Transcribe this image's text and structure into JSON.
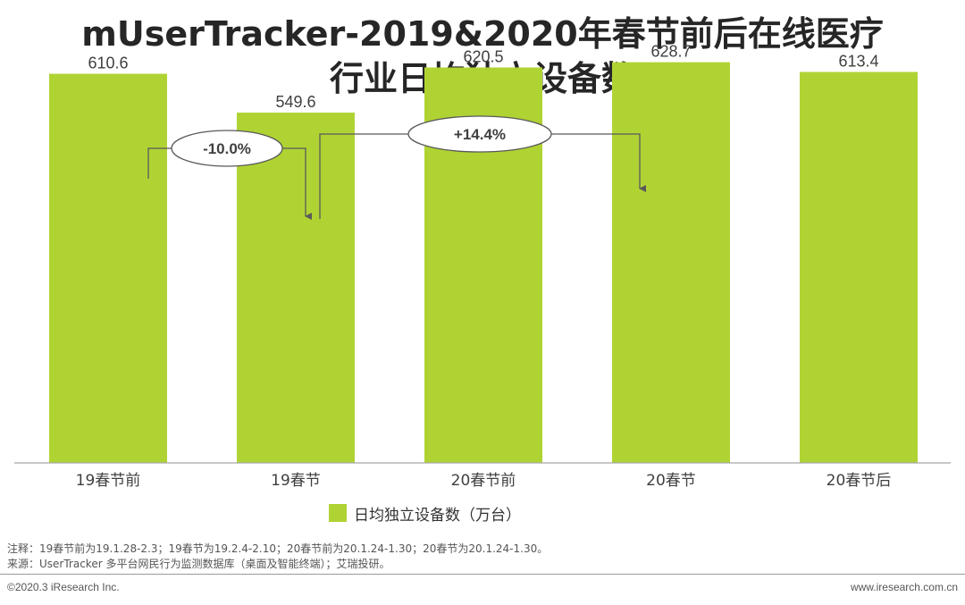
{
  "title_line1": "mUserTracker-2019&2020年春节前后在线医疗",
  "title_line2": "行业日均独立设备数",
  "chart_data": {
    "type": "bar",
    "categories": [
      "19春节前",
      "19春节",
      "20春节前",
      "20春节",
      "20春节后"
    ],
    "series": [
      {
        "name": "日均独立设备数（万台）",
        "values": [
          610.6,
          549.6,
          620.5,
          628.7,
          613.4
        ],
        "labels": [
          "610.6",
          "549.6",
          "620.5",
          "628.7",
          "613.4"
        ],
        "color": "#b0d334"
      }
    ],
    "ylim": [
      0,
      645
    ],
    "annotations": [
      {
        "from": 0,
        "to": 1,
        "label": "-10.0%"
      },
      {
        "from": 1,
        "to": 3,
        "label": "+14.4%"
      }
    ],
    "legend": "bottom"
  },
  "colors": {
    "bar": "#b0d334",
    "axis": "#a6a6a6",
    "annotation": "#595959"
  },
  "notes": {
    "line1": "注释：19春节前为19.1.28-2.3；19春节为19.2.4-2.10；20春节前为20.1.24-1.30；20春节为20.1.24-1.30。",
    "line2": "来源：UserTracker 多平台网民行为监测数据库（桌面及智能终端）；艾瑞投研。"
  },
  "footer": {
    "copyright": "©2020.3 iResearch Inc.",
    "website": "www.iresearch.com.cn"
  }
}
